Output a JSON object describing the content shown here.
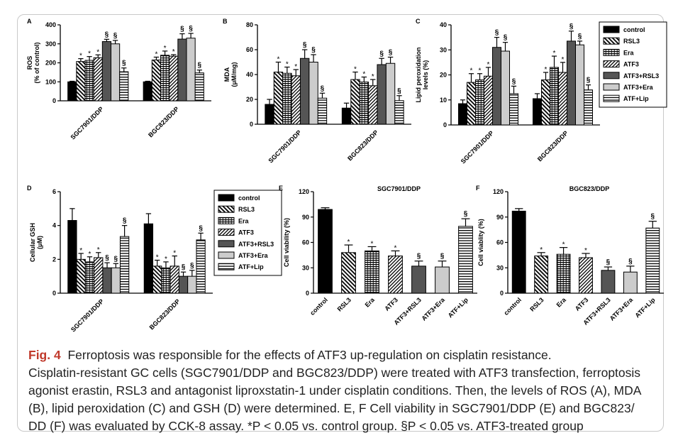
{
  "legend_entries": [
    "control",
    "RSL3",
    "Era",
    "ATF3",
    "ATF3+RSL3",
    "ATF3+Era",
    "ATF+Lip"
  ],
  "chart_data": [
    {
      "id": "A",
      "type": "bar",
      "panel_label": "A",
      "ylabel": [
        "ROS",
        "(% of control)"
      ],
      "ylim": [
        0,
        400
      ],
      "yticks": [
        0,
        100,
        200,
        300,
        400
      ],
      "categories": [
        "SGC7901/DDP",
        "BGC823/DDP"
      ],
      "series": [
        {
          "name": "control",
          "values": [
            100,
            100
          ],
          "err": [
            3,
            3
          ],
          "mark": [
            "",
            ""
          ]
        },
        {
          "name": "RSL3",
          "values": [
            207,
            215
          ],
          "err": [
            15,
            15
          ],
          "mark": [
            "*",
            "*"
          ]
        },
        {
          "name": "Era",
          "values": [
            213,
            240
          ],
          "err": [
            20,
            22
          ],
          "mark": [
            "*",
            "*"
          ]
        },
        {
          "name": "ATF3",
          "values": [
            227,
            235
          ],
          "err": [
            15,
            8
          ],
          "mark": [
            "*",
            "*"
          ]
        },
        {
          "name": "ATF3+RSL3",
          "values": [
            312,
            325
          ],
          "err": [
            12,
            28
          ],
          "mark": [
            "§",
            "§"
          ]
        },
        {
          "name": "ATF3+Era",
          "values": [
            300,
            330
          ],
          "err": [
            18,
            25
          ],
          "mark": [
            "§",
            "§"
          ]
        },
        {
          "name": "ATF+Lip",
          "values": [
            153,
            147
          ],
          "err": [
            20,
            15
          ],
          "mark": [
            "§",
            "§"
          ]
        }
      ]
    },
    {
      "id": "B",
      "type": "bar",
      "panel_label": "B",
      "ylabel": [
        "MDA",
        "(μM/mg)"
      ],
      "ylim": [
        0,
        80
      ],
      "yticks": [
        0,
        20,
        40,
        60,
        80
      ],
      "categories": [
        "SGC7901/DDP",
        "BGC823/DDP"
      ],
      "series": [
        {
          "name": "control",
          "values": [
            16,
            13
          ],
          "err": [
            4,
            4
          ],
          "mark": [
            "",
            ""
          ]
        },
        {
          "name": "RSL3",
          "values": [
            42,
            36
          ],
          "err": [
            8,
            6
          ],
          "mark": [
            "*",
            "*"
          ]
        },
        {
          "name": "Era",
          "values": [
            41,
            34
          ],
          "err": [
            5,
            4
          ],
          "mark": [
            "*",
            "*"
          ]
        },
        {
          "name": "ATF3",
          "values": [
            39,
            31
          ],
          "err": [
            5,
            5
          ],
          "mark": [
            "*",
            "*"
          ]
        },
        {
          "name": "ATF3+RSL3",
          "values": [
            53,
            48
          ],
          "err": [
            7,
            5
          ],
          "mark": [
            "§",
            "§"
          ]
        },
        {
          "name": "ATF3+Era",
          "values": [
            50,
            49
          ],
          "err": [
            6,
            5
          ],
          "mark": [
            "§",
            "§"
          ]
        },
        {
          "name": "ATF+Lip",
          "values": [
            21,
            19
          ],
          "err": [
            4,
            4
          ],
          "mark": [
            "§",
            "§"
          ]
        }
      ]
    },
    {
      "id": "C",
      "type": "bar",
      "panel_label": "C",
      "ylabel": [
        "Lipid peroxidation",
        "levels (%)"
      ],
      "ylim": [
        0,
        40
      ],
      "yticks": [
        0,
        10,
        20,
        30,
        40
      ],
      "categories": [
        "SGC7901/DDP",
        "BGC823/DDP"
      ],
      "series": [
        {
          "name": "control",
          "values": [
            8.5,
            10.5
          ],
          "err": [
            1.5,
            2
          ],
          "mark": [
            "",
            ""
          ]
        },
        {
          "name": "RSL3",
          "values": [
            17,
            18
          ],
          "err": [
            3.5,
            3
          ],
          "mark": [
            "*",
            "*"
          ]
        },
        {
          "name": "Era",
          "values": [
            18,
            23
          ],
          "err": [
            2.5,
            4.5
          ],
          "mark": [
            "*",
            "*"
          ]
        },
        {
          "name": "ATF3",
          "values": [
            19.5,
            21
          ],
          "err": [
            3.5,
            4
          ],
          "mark": [
            "*",
            "*"
          ]
        },
        {
          "name": "ATF3+RSL3",
          "values": [
            31,
            33.5
          ],
          "err": [
            4,
            4
          ],
          "mark": [
            "§",
            "§"
          ]
        },
        {
          "name": "ATF3+Era",
          "values": [
            29.5,
            32
          ],
          "err": [
            3.5,
            1.5
          ],
          "mark": [
            "§",
            "§"
          ]
        },
        {
          "name": "ATF+Lip",
          "values": [
            12.5,
            14
          ],
          "err": [
            3,
            2
          ],
          "mark": [
            "§",
            "§"
          ]
        }
      ]
    },
    {
      "id": "D",
      "type": "bar",
      "panel_label": "D",
      "ylabel": [
        "Cellular GSH",
        "(μM)"
      ],
      "ylim": [
        0,
        6
      ],
      "yticks": [
        0,
        2,
        4,
        6
      ],
      "categories": [
        "SGC7901/DDP",
        "BGC823/DDP"
      ],
      "series": [
        {
          "name": "control",
          "values": [
            4.3,
            4.1
          ],
          "err": [
            0.7,
            0.6
          ],
          "mark": [
            "",
            ""
          ]
        },
        {
          "name": "RSL3",
          "values": [
            2.0,
            1.6
          ],
          "err": [
            0.35,
            0.35
          ],
          "mark": [
            "*",
            "*"
          ]
        },
        {
          "name": "Era",
          "values": [
            1.85,
            1.5
          ],
          "err": [
            0.3,
            0.35
          ],
          "mark": [
            "*",
            "*"
          ]
        },
        {
          "name": "ATF3",
          "values": [
            2.1,
            1.6
          ],
          "err": [
            0.3,
            0.6
          ],
          "mark": [
            "*",
            "*"
          ]
        },
        {
          "name": "ATF3+RSL3",
          "values": [
            1.5,
            1.0
          ],
          "err": [
            0.3,
            0.25
          ],
          "mark": [
            "§",
            "§"
          ]
        },
        {
          "name": "ATF3+Era",
          "values": [
            1.5,
            1.0
          ],
          "err": [
            0.25,
            0.35
          ],
          "mark": [
            "§",
            "§"
          ]
        },
        {
          "name": "ATF+Lip",
          "values": [
            3.35,
            3.15
          ],
          "err": [
            0.65,
            0.4
          ],
          "mark": [
            "§",
            "§"
          ]
        }
      ]
    },
    {
      "id": "E",
      "type": "bar",
      "panel_label": "E",
      "title": "SGC7901/DDP",
      "ylabel": [
        "Cell viability (%)"
      ],
      "ylim": [
        0,
        120
      ],
      "yticks": [
        0,
        30,
        60,
        90,
        120
      ],
      "categories": [
        "control",
        "RSL3",
        "Era",
        "ATF3",
        "ATF3+RSL3",
        "ATF3+Era",
        "ATF+Lip"
      ],
      "values": [
        99,
        48,
        50,
        44,
        32,
        31,
        79
      ],
      "err": [
        2,
        9,
        5,
        6,
        6,
        7,
        9
      ],
      "mark": [
        "",
        "*",
        "*",
        "*",
        "§",
        "§",
        "§"
      ]
    },
    {
      "id": "F",
      "type": "bar",
      "panel_label": "F",
      "title": "BGC823/DDP",
      "ylabel": [
        "Cell viablity (%)"
      ],
      "ylim": [
        0,
        120
      ],
      "yticks": [
        0,
        30,
        60,
        90,
        120
      ],
      "categories": [
        "control",
        "RSL3",
        "Era",
        "ATF3",
        "ATF3+RSL3",
        "ATF3+Era",
        "ATF+Lip"
      ],
      "values": [
        97,
        44,
        46,
        42,
        27,
        25,
        77
      ],
      "err": [
        3,
        4,
        8,
        5,
        4,
        7,
        8
      ],
      "mark": [
        "",
        "*",
        "*",
        "*",
        "§",
        "§",
        "§"
      ]
    }
  ],
  "caption": {
    "fig_label": "Fig. 4",
    "line1": "Ferroptosis was responsible for the effects of ATF3 up-regulation on cisplatin resistance.",
    "line2": "Cisplatin-resistant GC cells (SGC7901/DDP and BGC823/DDP) were treated with ATF3 transfection, ferroptosis",
    "line3": "agonist erastin, RSL3 and antagonist liproxstatin-1 under cisplatin conditions. Then, the levels of ROS (A), MDA",
    "line4": "(B), lipid peroxidation (C) and GSH (D) were determined. E, F Cell viability in SGC7901/DDP (E) and BGC823/",
    "line5": "DD (F) was evaluated by CCK-8 assay. *P < 0.05 vs. control group. §P < 0.05 vs. ATF3-treated group"
  }
}
